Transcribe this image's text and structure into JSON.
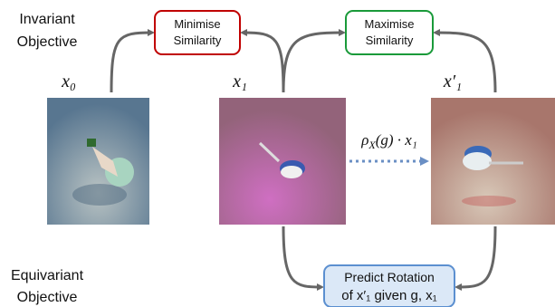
{
  "invariant_label": [
    "Invariant",
    "Objective"
  ],
  "equivariant_label": [
    "Equivariant",
    "Objective"
  ],
  "minimise_box": [
    "Minimise",
    "Similarity"
  ],
  "maximise_box": [
    "Maximise",
    "Similarity"
  ],
  "predict_box": [
    "Predict Rotation",
    "of x′₁ given g, x₁"
  ],
  "images": [
    {
      "label": "x₀"
    },
    {
      "label": "x₁"
    },
    {
      "label": "x′₁"
    }
  ],
  "operator": [
    "ρ",
    "X",
    "(g) · x₁"
  ]
}
